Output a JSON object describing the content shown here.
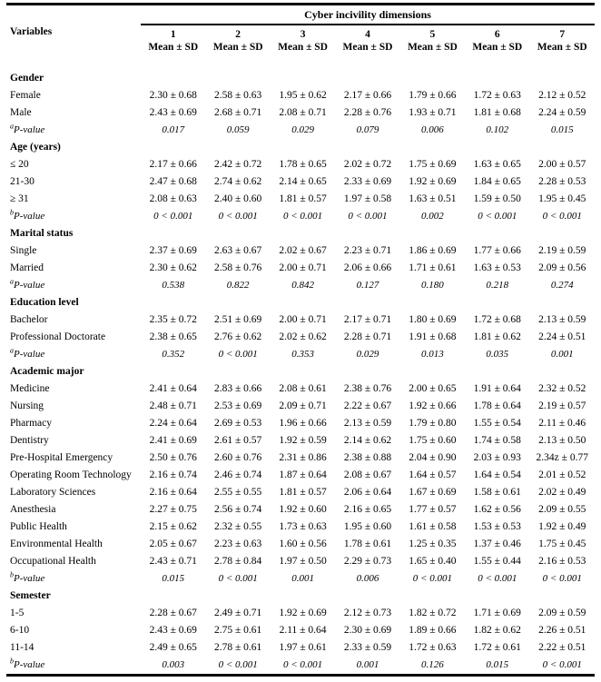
{
  "table": {
    "top_header": "Cyber incivility dimensions",
    "variables_label": "Variables",
    "mean_sd_label": "Mean ± SD",
    "column_numbers": [
      "1",
      "2",
      "3",
      "4",
      "5",
      "6",
      "7"
    ],
    "sections": [
      {
        "title": "Gender",
        "rows": [
          {
            "label": "Female",
            "values": [
              "2.30 ± 0.68",
              "2.58 ± 0.63",
              "1.95 ± 0.62",
              "2.17 ± 0.66",
              "1.79 ± 0.66",
              "1.72 ± 0.63",
              "2.12 ± 0.52"
            ]
          },
          {
            "label": "Male",
            "values": [
              "2.43 ± 0.69",
              "2.68 ± 0.71",
              "2.08 ± 0.71",
              "2.28 ± 0.76",
              "1.93 ± 0.71",
              "1.81 ± 0.68",
              "2.24 ± 0.59"
            ]
          },
          {
            "label": "P-value",
            "sup": "a",
            "values": [
              "0.017",
              "0.059",
              "0.029",
              "0.079",
              "0.006",
              "0.102",
              "0.015"
            ]
          }
        ]
      },
      {
        "title": "Age (years)",
        "rows": [
          {
            "label": "≤ 20",
            "values": [
              "2.17 ± 0.66",
              "2.42 ± 0.72",
              "1.78 ± 0.65",
              "2.02 ± 0.72",
              "1.75 ± 0.69",
              "1.63 ± 0.65",
              "2.00 ± 0.57"
            ]
          },
          {
            "label": "21-30",
            "values": [
              "2.47 ± 0.68",
              "2.74 ± 0.62",
              "2.14 ± 0.65",
              "2.33 ± 0.69",
              "1.92 ± 0.69",
              "1.84 ± 0.65",
              "2.28 ± 0.53"
            ]
          },
          {
            "label": "≥ 31",
            "values": [
              "2.08 ± 0.63",
              "2.40 ± 0.60",
              "1.81 ± 0.57",
              "1.97 ± 0.58",
              "1.63 ± 0.51",
              "1.59 ± 0.50",
              "1.95 ± 0.45"
            ]
          },
          {
            "label": "P-value",
            "sup": "b",
            "values": [
              "0 < 0.001",
              "0 < 0.001",
              "0 < 0.001",
              "0 < 0.001",
              "0.002",
              "0 < 0.001",
              "0 < 0.001"
            ]
          }
        ]
      },
      {
        "title": "Marital status",
        "rows": [
          {
            "label": "Single",
            "values": [
              "2.37 ± 0.69",
              "2.63 ± 0.67",
              "2.02 ± 0.67",
              "2.23 ± 0.71",
              "1.86 ± 0.69",
              "1.77 ± 0.66",
              "2.19 ± 0.59"
            ]
          },
          {
            "label": "Married",
            "values": [
              "2.30 ± 0.62",
              "2.58 ± 0.76",
              "2.00 ± 0.71",
              "2.06 ± 0.66",
              "1.71 ± 0.61",
              "1.63 ± 0.53",
              "2.09 ± 0.56"
            ]
          },
          {
            "label": "P-value",
            "sup": "a",
            "values": [
              "0.538",
              "0.822",
              "0.842",
              "0.127",
              "0.180",
              "0.218",
              "0.274"
            ]
          }
        ]
      },
      {
        "title": "Education level",
        "rows": [
          {
            "label": "Bachelor",
            "values": [
              "2.35 ± 0.72",
              "2.51 ± 0.69",
              "2.00 ± 0.71",
              "2.17 ± 0.71",
              "1.80 ± 0.69",
              "1.72 ± 0.68",
              "2.13 ± 0.59"
            ]
          },
          {
            "label": "Professional Doctorate",
            "values": [
              "2.38 ± 0.65",
              "2.76 ± 0.62",
              "2.02 ± 0.62",
              "2.28 ± 0.71",
              "1.91 ± 0.68",
              "1.81 ± 0.62",
              "2.24 ± 0.51"
            ]
          },
          {
            "label": "P-value",
            "sup": "a",
            "values": [
              "0.352",
              "0 < 0.001",
              "0.353",
              "0.029",
              "0.013",
              "0.035",
              "0.001"
            ]
          }
        ]
      },
      {
        "title": "Academic major",
        "rows": [
          {
            "label": "Medicine",
            "values": [
              "2.41 ± 0.64",
              "2.83 ± 0.66",
              "2.08 ± 0.61",
              "2.38 ± 0.76",
              "2.00 ± 0.65",
              "1.91 ± 0.64",
              "2.32 ± 0.52"
            ]
          },
          {
            "label": "Nursing",
            "values": [
              "2.48 ± 0.71",
              "2.53 ± 0.69",
              "2.09 ± 0.71",
              "2.22 ± 0.67",
              "1.92 ± 0.66",
              "1.78 ± 0.64",
              "2.19 ± 0.57"
            ]
          },
          {
            "label": "Pharmacy",
            "values": [
              "2.24 ± 0.64",
              "2.69 ± 0.53",
              "1.96 ± 0.66",
              "2.13 ± 0.59",
              "1.79 ± 0.80",
              "1.55 ± 0.54",
              "2.11 ± 0.46"
            ]
          },
          {
            "label": "Dentistry",
            "values": [
              "2.41 ± 0.69",
              "2.61 ± 0.57",
              "1.92 ± 0.59",
              "2.14 ± 0.62",
              "1.75 ± 0.60",
              "1.74 ± 0.58",
              "2.13 ± 0.50"
            ]
          },
          {
            "label": "Pre-Hospital Emergency",
            "values": [
              "2.50 ± 0.76",
              "2.60 ± 0.76",
              "2.31 ± 0.86",
              "2.38 ± 0.88",
              "2.04 ± 0.90",
              "2.03 ± 0.93",
              "2.34z ± 0.77"
            ]
          },
          {
            "label": "Operating Room Technology",
            "values": [
              "2.16 ± 0.74",
              "2.46 ± 0.74",
              "1.87 ± 0.64",
              "2.08 ± 0.67",
              "1.64 ± 0.57",
              "1.64 ± 0.54",
              "2.01 ± 0.52"
            ]
          },
          {
            "label": "Laboratory Sciences",
            "values": [
              "2.16 ± 0.64",
              "2.55 ± 0.55",
              "1.81 ± 0.57",
              "2.06 ± 0.64",
              "1.67 ± 0.69",
              "1.58 ± 0.61",
              "2.02 ± 0.49"
            ]
          },
          {
            "label": "Anesthesia",
            "values": [
              "2.27 ± 0.75",
              "2.56 ± 0.74",
              "1.92 ± 0.60",
              "2.16 ± 0.65",
              "1.77 ± 0.57",
              "1.62 ± 0.56",
              "2.09 ± 0.55"
            ]
          },
          {
            "label": "Public Health",
            "values": [
              "2.15 ± 0.62",
              "2.32 ± 0.55",
              "1.73 ± 0.63",
              "1.95 ± 0.60",
              "1.61 ± 0.58",
              "1.53 ± 0.53",
              "1.92 ± 0.49"
            ]
          },
          {
            "label": "Environmental Health",
            "values": [
              "2.05 ± 0.67",
              "2.23 ± 0.63",
              "1.60 ± 0.56",
              "1.78 ± 0.61",
              "1.25 ± 0.35",
              "1.37 ± 0.46",
              "1.75 ± 0.45"
            ]
          },
          {
            "label": "Occupational Health",
            "values": [
              "2.43 ± 0.71",
              "2.78 ± 0.84",
              "1.97 ± 0.50",
              "2.29 ± 0.73",
              "1.65 ± 0.40",
              "1.55 ± 0.44",
              "2.16 ± 0.53"
            ]
          },
          {
            "label": "P-value",
            "sup": "b",
            "values": [
              "0.015",
              "0 < 0.001",
              "0.001",
              "0.006",
              "0 < 0.001",
              "0 < 0.001",
              "0 < 0.001"
            ]
          }
        ]
      },
      {
        "title": "Semester",
        "rows": [
          {
            "label": "1-5",
            "values": [
              "2.28 ± 0.67",
              "2.49 ± 0.71",
              "1.92 ± 0.69",
              "2.12 ± 0.73",
              "1.82 ± 0.72",
              "1.71 ± 0.69",
              "2.09 ± 0.59"
            ]
          },
          {
            "label": "6-10",
            "values": [
              "2.43 ± 0.69",
              "2.75 ± 0.61",
              "2.11 ± 0.64",
              "2.30 ± 0.69",
              "1.89 ± 0.66",
              "1.82 ± 0.62",
              "2.26 ± 0.51"
            ]
          },
          {
            "label": "11-14",
            "values": [
              "2.49 ± 0.65",
              "2.78 ± 0.61",
              "1.97 ± 0.61",
              "2.33 ± 0.59",
              "1.72 ± 0.63",
              "1.72 ± 0.61",
              "2.22 ± 0.51"
            ]
          },
          {
            "label": "P-value",
            "sup": "b",
            "values": [
              "0.003",
              "0 < 0.001",
              "0 < 0.001",
              "0.001",
              "0.126",
              "0.015",
              "0 < 0.001"
            ]
          }
        ]
      }
    ]
  }
}
